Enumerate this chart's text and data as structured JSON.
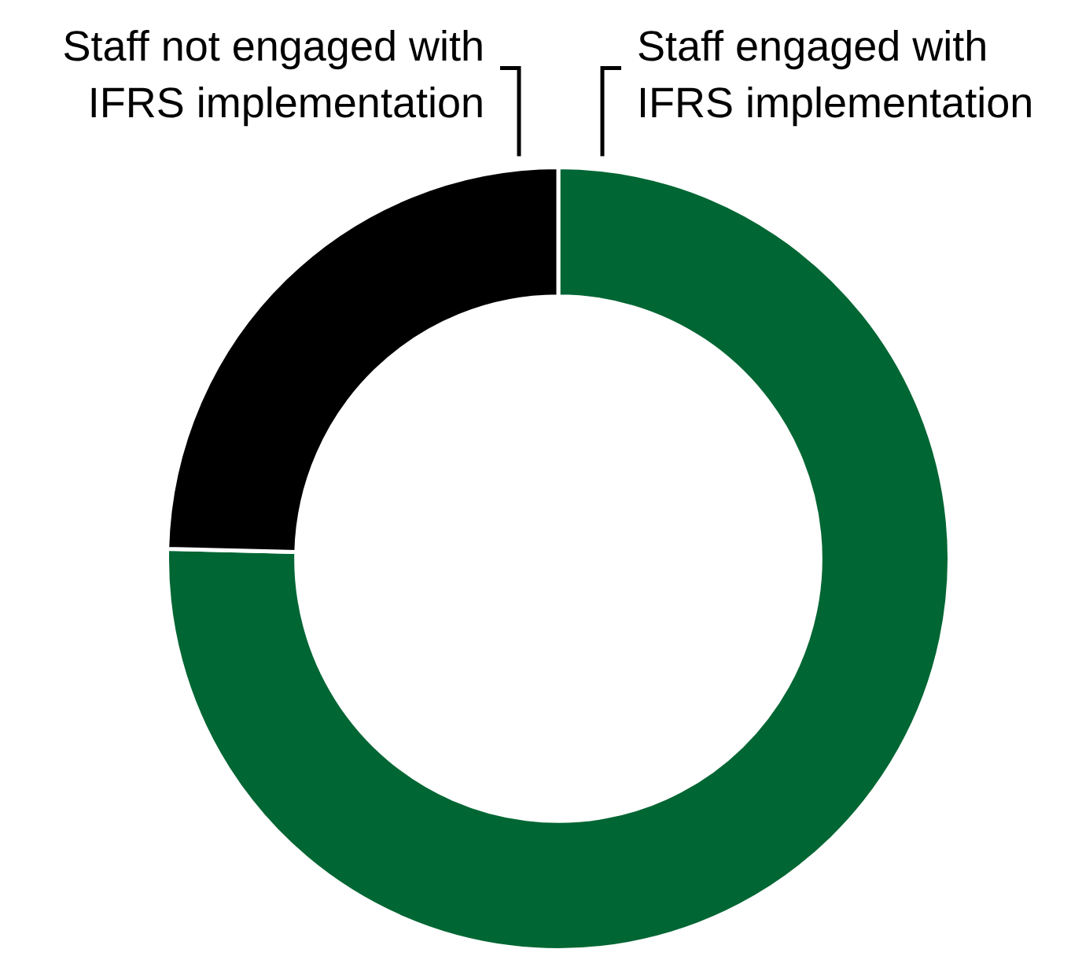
{
  "chart_data": {
    "type": "donut",
    "categories": [
      "Staff engaged with IFRS implementation",
      "Staff not engaged with IFRS implementation"
    ],
    "values": [
      75.4,
      24.6
    ],
    "colors": [
      "#006633",
      "#000000"
    ],
    "legend": false
  }
}
